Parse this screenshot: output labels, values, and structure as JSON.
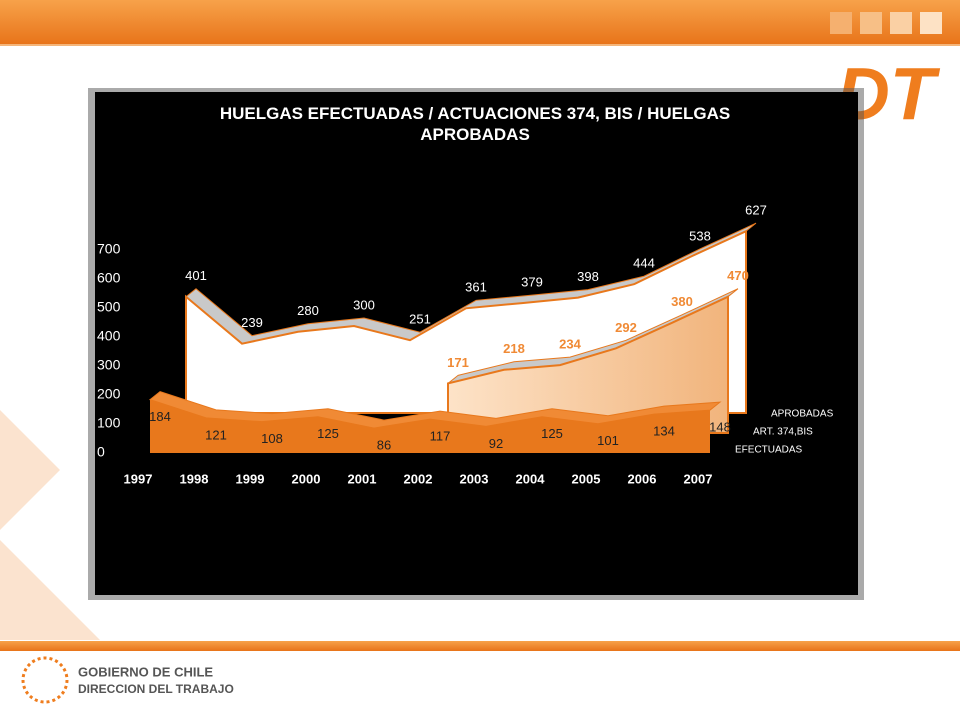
{
  "chart_data": {
    "type": "area3d",
    "title": "HUELGAS EFECTUADAS / ACTUACIONES 374, BIS / HUELGAS APROBADAS",
    "categories": [
      "1997",
      "1998",
      "1999",
      "2000",
      "2001",
      "2002",
      "2003",
      "2004",
      "2005",
      "2006",
      "2007"
    ],
    "series": [
      {
        "name": "APROBADAS",
        "color": "#ffffff",
        "values": [
          401,
          239,
          280,
          300,
          251,
          361,
          379,
          398,
          444,
          538,
          627
        ]
      },
      {
        "name": "ART. 374,BIS",
        "color": "#f7c79a",
        "values": [
          null,
          null,
          null,
          null,
          null,
          171,
          218,
          234,
          292,
          380,
          470
        ]
      },
      {
        "name": "EFECTUADAS",
        "color": "#e8781c",
        "values": [
          184,
          121,
          108,
          125,
          86,
          117,
          92,
          125,
          101,
          134,
          148
        ]
      }
    ],
    "ylim": [
      0,
      700
    ],
    "yticks": [
      0,
      100,
      200,
      300,
      400,
      500,
      600,
      700
    ],
    "grid": false
  },
  "logo": "DT",
  "footer": {
    "org": "GOBIERNO DE CHILE",
    "unit": "DIRECCION DEL TRABAJO"
  }
}
